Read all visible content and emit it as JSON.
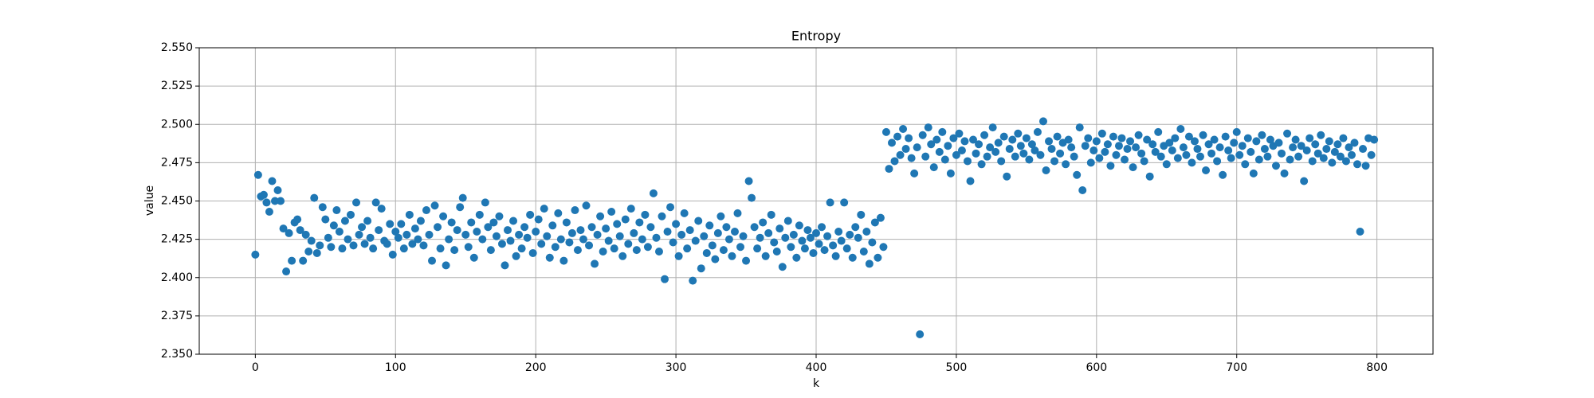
{
  "chart_data": {
    "type": "scatter",
    "title": "Entropy",
    "x_label": "k",
    "y_label": "value",
    "color": "#1f77b4",
    "grid": true,
    "xlim": [
      -40,
      840
    ],
    "ylim": [
      2.35,
      2.55
    ],
    "xticks": [
      0,
      100,
      200,
      300,
      400,
      500,
      600,
      700,
      800
    ],
    "yticks": [
      {
        "value": 2.35,
        "label": "2.350"
      },
      {
        "value": 2.375,
        "label": "2.375"
      },
      {
        "value": 2.4,
        "label": "2.400"
      },
      {
        "value": 2.425,
        "label": "2.425"
      },
      {
        "value": 2.45,
        "label": "2.450"
      },
      {
        "value": 2.475,
        "label": "2.475"
      },
      {
        "value": 2.5,
        "label": "2.500"
      },
      {
        "value": 2.525,
        "label": "2.525"
      },
      {
        "value": 2.55,
        "label": "2.550"
      }
    ],
    "x": [
      0,
      2,
      4,
      6,
      8,
      10,
      12,
      14,
      16,
      18,
      20,
      22,
      24,
      26,
      28,
      30,
      32,
      34,
      36,
      38,
      40,
      42,
      44,
      46,
      48,
      50,
      52,
      54,
      56,
      58,
      60,
      62,
      64,
      66,
      68,
      70,
      72,
      74,
      76,
      78,
      80,
      82,
      84,
      86,
      88,
      90,
      92,
      94,
      96,
      98,
      100,
      102,
      104,
      106,
      108,
      110,
      112,
      114,
      116,
      118,
      120,
      122,
      124,
      126,
      128,
      130,
      132,
      134,
      136,
      138,
      140,
      142,
      144,
      146,
      148,
      150,
      152,
      154,
      156,
      158,
      160,
      162,
      164,
      166,
      168,
      170,
      172,
      174,
      176,
      178,
      180,
      182,
      184,
      186,
      188,
      190,
      192,
      194,
      196,
      198,
      200,
      202,
      204,
      206,
      208,
      210,
      212,
      214,
      216,
      218,
      220,
      222,
      224,
      226,
      228,
      230,
      232,
      234,
      236,
      238,
      240,
      242,
      244,
      246,
      248,
      250,
      252,
      254,
      256,
      258,
      260,
      262,
      264,
      266,
      268,
      270,
      272,
      274,
      276,
      278,
      280,
      282,
      284,
      286,
      288,
      290,
      292,
      294,
      296,
      298,
      300,
      302,
      304,
      306,
      308,
      310,
      312,
      314,
      316,
      318,
      320,
      322,
      324,
      326,
      328,
      330,
      332,
      334,
      336,
      338,
      340,
      342,
      344,
      346,
      348,
      350,
      352,
      354,
      356,
      358,
      360,
      362,
      364,
      366,
      368,
      370,
      372,
      374,
      376,
      378,
      380,
      382,
      384,
      386,
      388,
      390,
      392,
      394,
      396,
      398,
      400,
      402,
      404,
      406,
      408,
      410,
      412,
      414,
      416,
      418,
      420,
      422,
      424,
      426,
      428,
      430,
      432,
      434,
      436,
      438,
      440,
      442,
      444,
      446,
      448,
      450,
      452,
      454,
      456,
      458,
      460,
      462,
      464,
      466,
      468,
      470,
      472,
      474,
      476,
      478,
      480,
      482,
      484,
      486,
      488,
      490,
      492,
      494,
      496,
      498,
      500,
      502,
      504,
      506,
      508,
      510,
      512,
      514,
      516,
      518,
      520,
      522,
      524,
      526,
      528,
      530,
      532,
      534,
      536,
      538,
      540,
      542,
      544,
      546,
      548,
      550,
      552,
      554,
      556,
      558,
      560,
      562,
      564,
      566,
      568,
      570,
      572,
      574,
      576,
      578,
      580,
      582,
      584,
      586,
      588,
      590,
      592,
      594,
      596,
      598,
      600,
      602,
      604,
      606,
      608,
      610,
      612,
      614,
      616,
      618,
      620,
      622,
      624,
      626,
      628,
      630,
      632,
      634,
      636,
      638,
      640,
      642,
      644,
      646,
      648,
      650,
      652,
      654,
      656,
      658,
      660,
      662,
      664,
      666,
      668,
      670,
      672,
      674,
      676,
      678,
      680,
      682,
      684,
      686,
      688,
      690,
      692,
      694,
      696,
      698,
      700,
      702,
      704,
      706,
      708,
      710,
      712,
      714,
      716,
      718,
      720,
      722,
      724,
      726,
      728,
      730,
      732,
      734,
      736,
      738,
      740,
      742,
      744,
      746,
      748,
      750,
      752,
      754,
      756,
      758,
      760,
      762,
      764,
      766,
      768,
      770,
      772,
      774,
      776,
      778,
      780,
      782,
      784,
      786,
      788,
      790,
      792,
      794,
      796,
      798
    ],
    "values": [
      2.415,
      2.467,
      2.453,
      2.454,
      2.449,
      2.443,
      2.463,
      2.45,
      2.457,
      2.45,
      2.432,
      2.404,
      2.429,
      2.411,
      2.436,
      2.438,
      2.431,
      2.411,
      2.428,
      2.417,
      2.424,
      2.452,
      2.416,
      2.421,
      2.446,
      2.438,
      2.426,
      2.42,
      2.434,
      2.444,
      2.43,
      2.419,
      2.437,
      2.425,
      2.441,
      2.421,
      2.449,
      2.428,
      2.433,
      2.422,
      2.437,
      2.426,
      2.419,
      2.449,
      2.431,
      2.445,
      2.424,
      2.422,
      2.435,
      2.415,
      2.43,
      2.426,
      2.435,
      2.419,
      2.428,
      2.441,
      2.422,
      2.432,
      2.425,
      2.437,
      2.421,
      2.444,
      2.428,
      2.411,
      2.447,
      2.433,
      2.419,
      2.44,
      2.408,
      2.425,
      2.436,
      2.418,
      2.431,
      2.446,
      2.452,
      2.428,
      2.42,
      2.436,
      2.413,
      2.43,
      2.441,
      2.425,
      2.449,
      2.433,
      2.418,
      2.436,
      2.427,
      2.44,
      2.422,
      2.408,
      2.431,
      2.424,
      2.437,
      2.414,
      2.428,
      2.419,
      2.433,
      2.426,
      2.441,
      2.416,
      2.43,
      2.438,
      2.422,
      2.445,
      2.427,
      2.413,
      2.434,
      2.42,
      2.442,
      2.425,
      2.411,
      2.436,
      2.423,
      2.429,
      2.444,
      2.418,
      2.431,
      2.425,
      2.447,
      2.421,
      2.433,
      2.409,
      2.428,
      2.44,
      2.417,
      2.432,
      2.424,
      2.443,
      2.419,
      2.435,
      2.427,
      2.414,
      2.438,
      2.422,
      2.445,
      2.429,
      2.418,
      2.436,
      2.425,
      2.441,
      2.42,
      2.433,
      2.455,
      2.426,
      2.417,
      2.44,
      2.399,
      2.43,
      2.446,
      2.423,
      2.435,
      2.414,
      2.428,
      2.442,
      2.419,
      2.431,
      2.398,
      2.424,
      2.437,
      2.406,
      2.427,
      2.416,
      2.434,
      2.421,
      2.412,
      2.429,
      2.44,
      2.418,
      2.433,
      2.425,
      2.414,
      2.43,
      2.442,
      2.42,
      2.427,
      2.411,
      2.463,
      2.452,
      2.433,
      2.419,
      2.426,
      2.436,
      2.414,
      2.429,
      2.441,
      2.423,
      2.417,
      2.432,
      2.407,
      2.426,
      2.437,
      2.42,
      2.428,
      2.413,
      2.434,
      2.424,
      2.419,
      2.431,
      2.426,
      2.416,
      2.429,
      2.422,
      2.433,
      2.418,
      2.427,
      2.449,
      2.421,
      2.414,
      2.43,
      2.424,
      2.449,
      2.419,
      2.428,
      2.413,
      2.433,
      2.426,
      2.441,
      2.417,
      2.43,
      2.409,
      2.423,
      2.436,
      2.413,
      2.439,
      2.42,
      2.495,
      2.471,
      2.488,
      2.476,
      2.492,
      2.48,
      2.497,
      2.484,
      2.491,
      2.478,
      2.468,
      2.485,
      2.363,
      2.493,
      2.479,
      2.498,
      2.487,
      2.472,
      2.49,
      2.482,
      2.495,
      2.477,
      2.486,
      2.468,
      2.491,
      2.48,
      2.494,
      2.483,
      2.489,
      2.476,
      2.463,
      2.49,
      2.481,
      2.487,
      2.474,
      2.493,
      2.479,
      2.485,
      2.498,
      2.482,
      2.488,
      2.476,
      2.492,
      2.466,
      2.484,
      2.49,
      2.479,
      2.494,
      2.486,
      2.481,
      2.491,
      2.477,
      2.487,
      2.483,
      2.495,
      2.48,
      2.502,
      2.47,
      2.489,
      2.484,
      2.476,
      2.492,
      2.481,
      2.488,
      2.474,
      2.49,
      2.485,
      2.479,
      2.467,
      2.498,
      2.457,
      2.486,
      2.491,
      2.475,
      2.483,
      2.489,
      2.478,
      2.494,
      2.482,
      2.487,
      2.473,
      2.492,
      2.48,
      2.486,
      2.491,
      2.477,
      2.484,
      2.489,
      2.472,
      2.485,
      2.493,
      2.481,
      2.476,
      2.49,
      2.466,
      2.487,
      2.482,
      2.495,
      2.479,
      2.486,
      2.474,
      2.488,
      2.483,
      2.491,
      2.478,
      2.497,
      2.485,
      2.48,
      2.492,
      2.475,
      2.489,
      2.484,
      2.479,
      2.493,
      2.47,
      2.487,
      2.481,
      2.49,
      2.476,
      2.485,
      2.467,
      2.492,
      2.483,
      2.478,
      2.488,
      2.495,
      2.48,
      2.486,
      2.474,
      2.491,
      2.482,
      2.468,
      2.489,
      2.477,
      2.493,
      2.484,
      2.479,
      2.49,
      2.486,
      2.473,
      2.488,
      2.481,
      2.468,
      2.494,
      2.477,
      2.485,
      2.49,
      2.479,
      2.486,
      2.463,
      2.483,
      2.491,
      2.476,
      2.487,
      2.481,
      2.493,
      2.478,
      2.484,
      2.489,
      2.475,
      2.482,
      2.487,
      2.479,
      2.491,
      2.476,
      2.485,
      2.48,
      2.488,
      2.474,
      2.43,
      2.484,
      2.473,
      2.491,
      2.48,
      2.49
    ]
  }
}
